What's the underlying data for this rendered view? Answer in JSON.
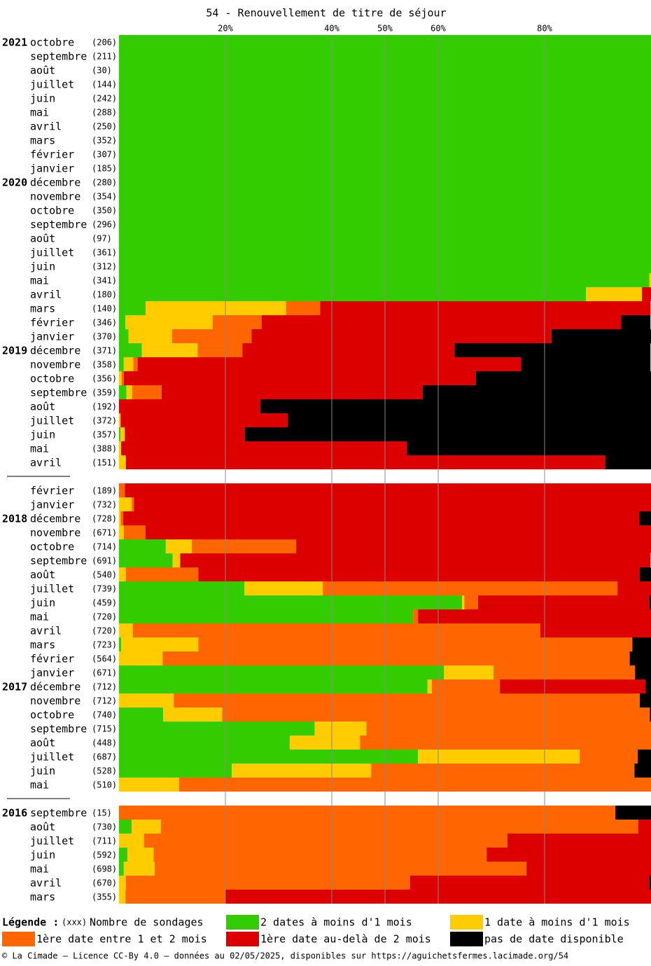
{
  "chart_data": {
    "type": "stacked-bar-percent",
    "orientation": "horizontal",
    "title": "54 - Renouvellement de titre de séjour",
    "xlim": [
      0,
      100
    ],
    "xticks": [
      {
        "value": 20,
        "label": "20%"
      },
      {
        "value": 40,
        "label": "40%"
      },
      {
        "value": 50,
        "label": "50%"
      },
      {
        "value": 60,
        "label": "60%"
      },
      {
        "value": 80,
        "label": "80%"
      }
    ],
    "grid": true,
    "categories": [
      "octobre",
      "septembre",
      "août",
      "juillet",
      "juin",
      "mai",
      "avril",
      "mars",
      "février",
      "janvier",
      "décembre",
      "novembre",
      "octobre",
      "septembre",
      "août",
      "juillet",
      "juin",
      "mai",
      "avril",
      "mars",
      "février",
      "janvier",
      "décembre",
      "novembre",
      "octobre",
      "septembre",
      "août",
      "juillet",
      "juin",
      "mai",
      "avril",
      null,
      "février",
      "janvier",
      "décembre",
      "novembre",
      "octobre",
      "septembre",
      "août",
      "juillet",
      "juin",
      "mai",
      "avril",
      "mars",
      "février",
      "janvier",
      "décembre",
      "novembre",
      "octobre",
      "septembre",
      "août",
      "juillet",
      "juin",
      "mai",
      null,
      "septembre",
      "août",
      "juillet",
      "juin",
      "mai",
      "avril",
      "mars"
    ],
    "years": [
      "2021",
      null,
      null,
      null,
      null,
      null,
      null,
      null,
      null,
      null,
      "2020",
      null,
      null,
      null,
      null,
      null,
      null,
      null,
      null,
      null,
      null,
      null,
      "2019",
      null,
      null,
      null,
      null,
      null,
      null,
      null,
      null,
      null,
      null,
      null,
      "2018",
      null,
      null,
      null,
      null,
      null,
      null,
      null,
      null,
      null,
      null,
      null,
      "2017",
      null,
      null,
      null,
      null,
      null,
      null,
      null,
      null,
      "2016",
      null,
      null,
      null,
      null,
      null,
      null
    ],
    "count_labels": [
      "(206)",
      "(211)",
      "(30)",
      "(144)",
      "(242)",
      "(288)",
      "(250)",
      "(352)",
      "(307)",
      "(185)",
      "(280)",
      "(354)",
      "(350)",
      "(296)",
      "(97)",
      "(361)",
      "(312)",
      "(341)",
      "(180)",
      "(140)",
      "(346)",
      "(370)",
      "(371)",
      "(358)",
      "(356)",
      "(359)",
      "(192)",
      "(372)",
      "(357)",
      "(388)",
      "(151)",
      null,
      "(189)",
      "(732)",
      "(728)",
      "(671)",
      "(714)",
      "(691)",
      "(540)",
      "(739)",
      "(459)",
      "(720)",
      "(720)",
      "(723)",
      "(564)",
      "(671)",
      "(712)",
      "(712)",
      "(740)",
      "(715)",
      "(448)",
      "(687)",
      "(528)",
      "(510)",
      null,
      "(15)",
      "(730)",
      "(711)",
      "(592)",
      "(698)",
      "(670)",
      "(355)"
    ],
    "series": [
      {
        "name": "2 dates à moins d'1 mois",
        "color": "#33cc00",
        "values": [
          100,
          100,
          100,
          100,
          100,
          100,
          100,
          100,
          100,
          100,
          100,
          100,
          100,
          100,
          100,
          100,
          100,
          99.7,
          87.8,
          5,
          1.2,
          1.8,
          4.3,
          0.9,
          0,
          1.4,
          0,
          0,
          0.3,
          0,
          0,
          null,
          0,
          0,
          0,
          0,
          8.8,
          10.1,
          0,
          23.6,
          64.5,
          55.3,
          0,
          0.4,
          0,
          61.1,
          58.0,
          0,
          8.3,
          36.8,
          32.1,
          56.2,
          21.2,
          0,
          null,
          0,
          2.4,
          0,
          1.6,
          0.9,
          0,
          0
        ]
      },
      {
        "name": "1 date à moins d'1 mois",
        "color": "#ffcc00",
        "values": [
          0,
          0,
          0,
          0,
          0,
          0,
          0,
          0,
          0,
          0,
          0,
          0,
          0,
          0,
          0,
          0,
          0,
          0.3,
          10.5,
          26.4,
          16.4,
          8.2,
          10.5,
          1.8,
          0.5,
          1.1,
          0,
          0.3,
          0.8,
          0.4,
          1.3,
          null,
          0,
          2.4,
          0.3,
          0.9,
          4.9,
          1.4,
          1.3,
          14.7,
          0.4,
          0,
          2.6,
          14.5,
          8.2,
          9.3,
          0.8,
          10.3,
          11.1,
          9.7,
          13.2,
          30.4,
          26.2,
          11.3,
          null,
          0,
          5.5,
          4.7,
          4.9,
          5.8,
          1.3,
          1.2
        ]
      },
      {
        "name": "1ère date entre 1 et 2 mois",
        "color": "#ff6600",
        "values": [
          0,
          0,
          0,
          0,
          0,
          0,
          0,
          0,
          0,
          0,
          0,
          0,
          0,
          0,
          0,
          0,
          0,
          0,
          0,
          6.4,
          9.2,
          14.9,
          8.4,
          0.8,
          0.4,
          5.5,
          0,
          0,
          0,
          0,
          0,
          null,
          1.1,
          0.4,
          0.5,
          4.1,
          19.6,
          0,
          13.6,
          55.4,
          2.6,
          0.9,
          76.6,
          81.6,
          87.8,
          26.6,
          12.8,
          87.6,
          80.4,
          53.5,
          54.7,
          10.9,
          49.5,
          88.7,
          null,
          93.3,
          89.7,
          68.3,
          62.6,
          69.9,
          53.4,
          18.8
        ]
      },
      {
        "name": "1ère date au-delà de 2 mois",
        "color": "#dd0000",
        "values": [
          0,
          0,
          0,
          0,
          0,
          0,
          0,
          0,
          0,
          0,
          0,
          0,
          0,
          0,
          0,
          0,
          0,
          0,
          1.7,
          62.1,
          67.6,
          56.4,
          39.9,
          72.1,
          66.2,
          49.1,
          26.6,
          31.4,
          22.6,
          53.7,
          90.1,
          null,
          98.9,
          97.2,
          97.0,
          95.0,
          66.7,
          88.4,
          83.0,
          6.3,
          32.2,
          43.8,
          20.8,
          0,
          0,
          0,
          27.4,
          0,
          0,
          0,
          0,
          0,
          0,
          0,
          null,
          0,
          2.4,
          27.0,
          30.9,
          23.4,
          45.0,
          80.0
        ]
      },
      {
        "name": "pas de date disponible",
        "color": "#000000",
        "values": [
          0,
          0,
          0,
          0,
          0,
          0,
          0,
          0,
          0,
          0,
          0,
          0,
          0,
          0,
          0,
          0,
          0,
          0,
          0,
          0,
          5.5,
          18.7,
          36.8,
          24.3,
          32.9,
          42.9,
          73.4,
          68.3,
          76.3,
          45.9,
          8.6,
          null,
          0,
          0,
          2.2,
          0,
          0,
          0,
          2.1,
          0,
          0.3,
          0,
          0,
          3.5,
          4.1,
          3.0,
          1.0,
          2.1,
          0.2,
          0,
          0,
          2.5,
          3.1,
          0,
          null,
          6.7,
          0,
          0,
          0,
          0,
          0.3,
          0
        ]
      }
    ],
    "legend_title": "Légende :",
    "count_legend_symbol": "(xxx)",
    "count_legend_label": "Nombre de sondages",
    "footer": "© La Cimade – Licence CC-By 4.0 – données au 02/05/2025, disponibles sur https://aguichetsfermes.lacimade.org/54"
  }
}
